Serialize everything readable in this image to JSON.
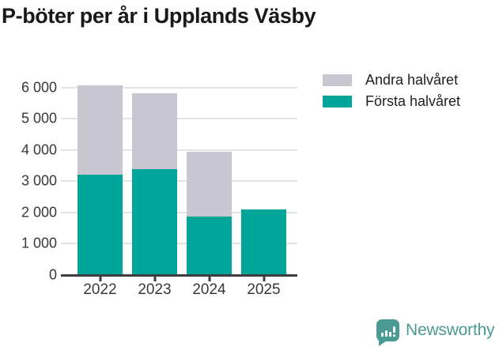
{
  "title": "P-böter per år i Upplands Väsby",
  "chart_data": {
    "type": "bar",
    "stacked": true,
    "title": "P-böter per år i Upplands Väsby",
    "categories": [
      "2022",
      "2023",
      "2024",
      "2025"
    ],
    "series": [
      {
        "name": "Första halvåret",
        "color": "#00a59a",
        "values": [
          3200,
          3390,
          1870,
          2100
        ]
      },
      {
        "name": "Andra halvåret",
        "color": "#c8c6d0",
        "values": [
          2880,
          2440,
          2080,
          0
        ]
      }
    ],
    "totals": [
      6080,
      5830,
      3950,
      2100
    ],
    "xlabel": "",
    "ylabel": "",
    "ylim": [
      0,
      6500
    ],
    "yticks": [
      0,
      1000,
      2000,
      3000,
      4000,
      5000,
      6000
    ],
    "ytick_labels": [
      "0",
      "1 000",
      "2 000",
      "3 000",
      "4 000",
      "5 000",
      "6 000"
    ],
    "grid": true,
    "legend_position": "top-right",
    "legend": [
      {
        "label": "Andra halvåret",
        "color": "#c8c6d0"
      },
      {
        "label": "Första halvåret",
        "color": "#00a59a"
      }
    ]
  },
  "footer": {
    "brand": "Newsworthy",
    "brand_color": "#4a9a94",
    "logo_icon": "bar-chart-exclamation-bubble-icon"
  },
  "colors": {
    "first_half": "#00a59a",
    "second_half": "#c8c6d0",
    "gridline": "#e3e3e3",
    "axis": "#3d3d3d",
    "text": "#383838",
    "title": "#191919"
  }
}
